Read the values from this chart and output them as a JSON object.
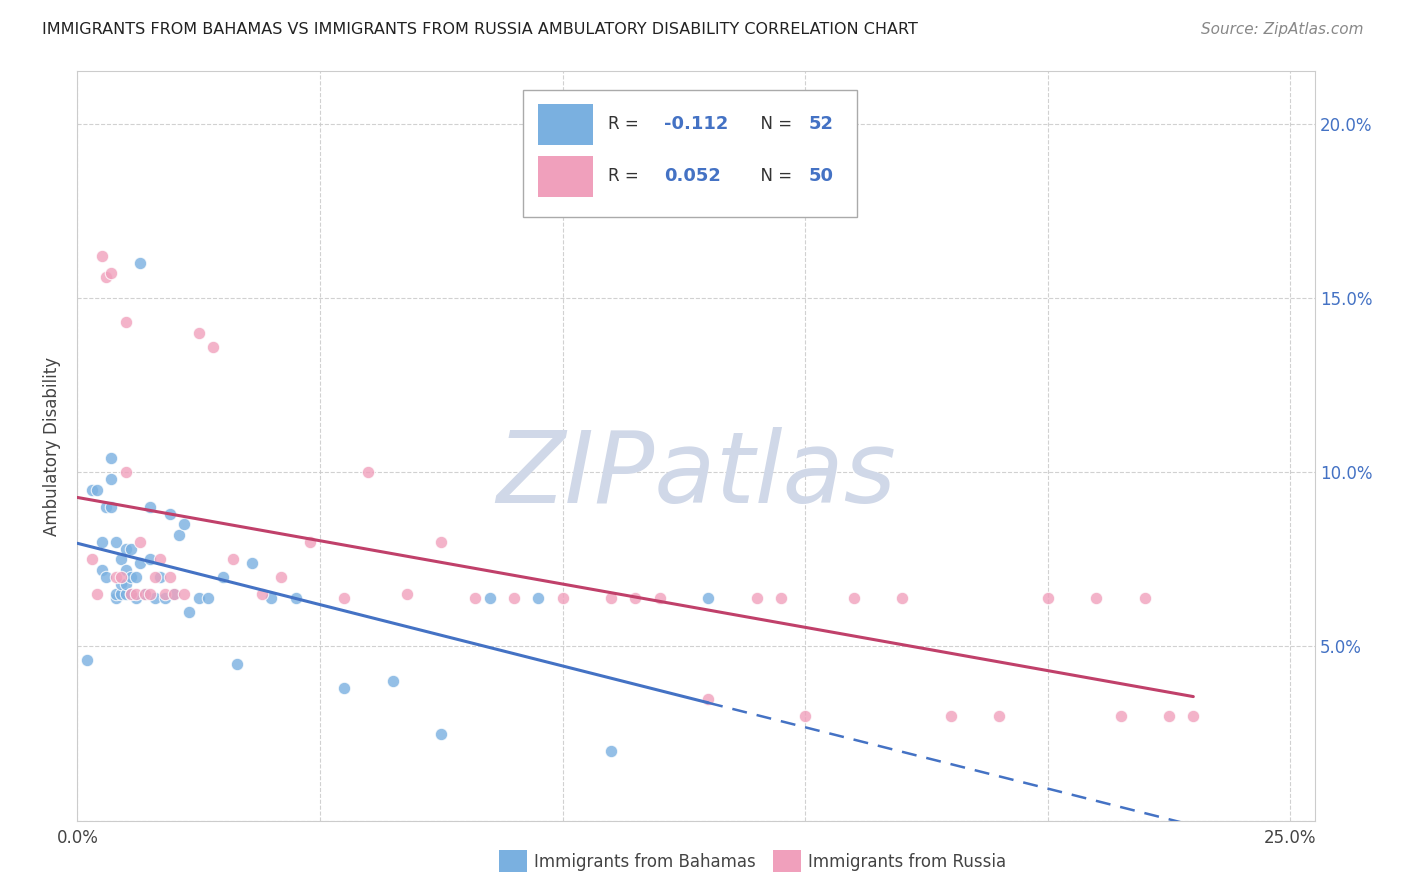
{
  "title": "IMMIGRANTS FROM BAHAMAS VS IMMIGRANTS FROM RUSSIA AMBULATORY DISABILITY CORRELATION CHART",
  "source": "Source: ZipAtlas.com",
  "ylabel": "Ambulatory Disability",
  "xlabel_bahamas": "Immigrants from Bahamas",
  "xlabel_russia": "Immigrants from Russia",
  "x_min": 0.0,
  "x_max": 0.255,
  "y_min": 0.0,
  "y_max": 0.215,
  "color_bahamas": "#7ab0e0",
  "color_russia": "#f0a0bc",
  "regression_color_bahamas": "#4472c4",
  "regression_color_russia": "#c0406a",
  "background_color": "#ffffff",
  "grid_color": "#cccccc",
  "watermark_color": "#d0d8e8",
  "bahamas_x": [
    0.002,
    0.003,
    0.004,
    0.005,
    0.005,
    0.006,
    0.006,
    0.007,
    0.007,
    0.007,
    0.008,
    0.008,
    0.008,
    0.009,
    0.009,
    0.009,
    0.01,
    0.01,
    0.01,
    0.01,
    0.011,
    0.011,
    0.011,
    0.012,
    0.012,
    0.013,
    0.013,
    0.014,
    0.015,
    0.015,
    0.016,
    0.017,
    0.018,
    0.019,
    0.02,
    0.021,
    0.022,
    0.023,
    0.025,
    0.027,
    0.03,
    0.033,
    0.036,
    0.04,
    0.045,
    0.055,
    0.065,
    0.075,
    0.085,
    0.095,
    0.11,
    0.13
  ],
  "bahamas_y": [
    0.046,
    0.095,
    0.095,
    0.072,
    0.08,
    0.07,
    0.09,
    0.09,
    0.098,
    0.104,
    0.08,
    0.064,
    0.065,
    0.065,
    0.068,
    0.075,
    0.065,
    0.068,
    0.072,
    0.078,
    0.065,
    0.07,
    0.078,
    0.064,
    0.07,
    0.074,
    0.16,
    0.065,
    0.075,
    0.09,
    0.064,
    0.07,
    0.064,
    0.088,
    0.065,
    0.082,
    0.085,
    0.06,
    0.064,
    0.064,
    0.07,
    0.045,
    0.074,
    0.064,
    0.064,
    0.038,
    0.04,
    0.025,
    0.064,
    0.064,
    0.02,
    0.064
  ],
  "russia_x": [
    0.003,
    0.004,
    0.005,
    0.006,
    0.007,
    0.008,
    0.009,
    0.01,
    0.01,
    0.011,
    0.012,
    0.013,
    0.014,
    0.015,
    0.016,
    0.017,
    0.018,
    0.019,
    0.02,
    0.022,
    0.025,
    0.028,
    0.032,
    0.038,
    0.042,
    0.048,
    0.055,
    0.06,
    0.068,
    0.075,
    0.082,
    0.09,
    0.1,
    0.11,
    0.115,
    0.12,
    0.13,
    0.14,
    0.145,
    0.15,
    0.16,
    0.17,
    0.18,
    0.19,
    0.2,
    0.21,
    0.215,
    0.22,
    0.225,
    0.23
  ],
  "russia_y": [
    0.075,
    0.065,
    0.162,
    0.156,
    0.157,
    0.07,
    0.07,
    0.1,
    0.143,
    0.065,
    0.065,
    0.08,
    0.065,
    0.065,
    0.07,
    0.075,
    0.065,
    0.07,
    0.065,
    0.065,
    0.14,
    0.136,
    0.075,
    0.065,
    0.07,
    0.08,
    0.064,
    0.1,
    0.065,
    0.08,
    0.064,
    0.064,
    0.064,
    0.064,
    0.064,
    0.064,
    0.035,
    0.064,
    0.064,
    0.03,
    0.064,
    0.064,
    0.03,
    0.03,
    0.064,
    0.064,
    0.03,
    0.064,
    0.03,
    0.03
  ]
}
